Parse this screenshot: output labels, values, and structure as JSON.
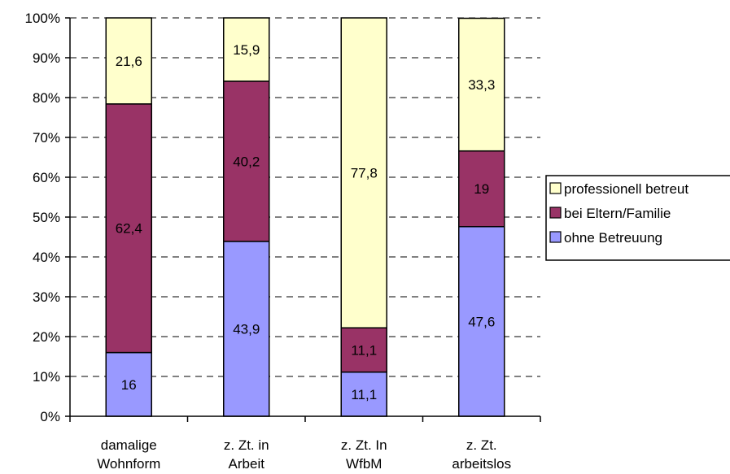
{
  "chart_data": {
    "type": "bar",
    "stacked": true,
    "normalized": true,
    "categories": [
      [
        "damalige",
        "Wohnform"
      ],
      [
        "z. Zt. in",
        "Arbeit"
      ],
      [
        "z. Zt. In",
        "WfbM"
      ],
      [
        "z. Zt.",
        "arbeitslos"
      ]
    ],
    "series": [
      {
        "name": "ohne Betreuung",
        "color": "#9999ff",
        "values": [
          16,
          43.9,
          11.1,
          47.6
        ],
        "labels": [
          "16",
          "43,9",
          "11,1",
          "47,6"
        ]
      },
      {
        "name": "bei Eltern/Familie",
        "color": "#993366",
        "values": [
          62.4,
          40.2,
          11.1,
          19
        ],
        "labels": [
          "62,4",
          "40,2",
          "11,1",
          "19"
        ]
      },
      {
        "name": "professionell betreut",
        "color": "#ffffcc",
        "values": [
          21.6,
          15.9,
          77.8,
          33.3
        ],
        "labels": [
          "21,6",
          "15,9",
          "77,8",
          "33,3"
        ]
      }
    ],
    "legend_order": [
      "professionell betreut",
      "bei Eltern/Familie",
      "ohne Betreuung"
    ],
    "yticks": [
      "0%",
      "10%",
      "20%",
      "30%",
      "40%",
      "50%",
      "60%",
      "70%",
      "80%",
      "90%",
      "100%"
    ],
    "ylim": [
      0,
      100
    ],
    "grid": "dashed horizontal",
    "legend_position": "right"
  }
}
